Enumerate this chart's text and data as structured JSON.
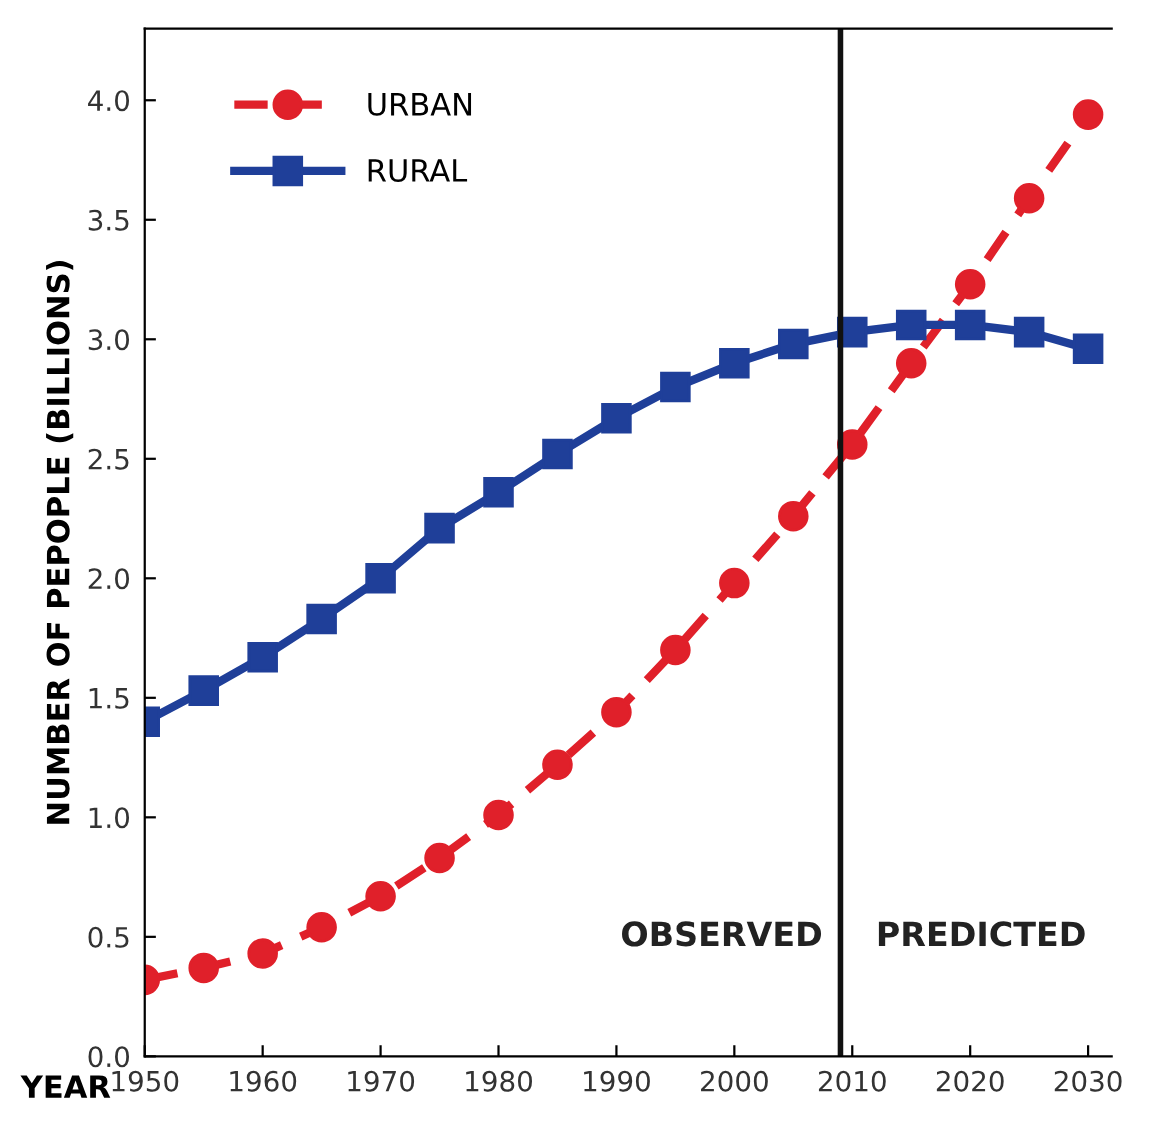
{
  "chart_data": {
    "type": "line",
    "ylabel": "NUMBER OF PEPOPLE (BILLIONS)",
    "xlabel": "YEAR",
    "x": [
      1950,
      1955,
      1960,
      1965,
      1970,
      1975,
      1980,
      1985,
      1990,
      1995,
      2000,
      2005,
      2010,
      2015,
      2020,
      2025,
      2030
    ],
    "series": [
      {
        "name": "URBAN",
        "color": "#e0202a",
        "marker": "circle",
        "line_style": "dashed",
        "values": [
          0.32,
          0.37,
          0.43,
          0.54,
          0.67,
          0.83,
          1.01,
          1.22,
          1.44,
          1.7,
          1.98,
          2.26,
          2.56,
          2.9,
          3.23,
          3.59,
          3.94
        ]
      },
      {
        "name": "RURAL",
        "color": "#1f3f99",
        "marker": "square",
        "line_style": "solid",
        "values": [
          1.4,
          1.53,
          1.67,
          1.83,
          2.0,
          2.21,
          2.36,
          2.52,
          2.67,
          2.8,
          2.9,
          2.98,
          3.03,
          3.06,
          3.06,
          3.03,
          2.96
        ]
      }
    ],
    "xlim": [
      1950,
      2032
    ],
    "ylim": [
      0,
      4.3
    ],
    "xticks": [
      1950,
      1960,
      1970,
      1980,
      1990,
      2000,
      2010,
      2020,
      2030
    ],
    "yticks": [
      {
        "value": 0,
        "label": "0.0"
      },
      0.5,
      {
        "value": 1,
        "label": "1.0"
      },
      1.5,
      {
        "value": 2,
        "label": "2.0"
      },
      2.5,
      {
        "value": 3,
        "label": "3.0"
      },
      3.5,
      {
        "value": 4,
        "label": "4.0"
      }
    ],
    "ref_lines": [
      {
        "axis": "x",
        "value": 2009,
        "color": "#111111"
      }
    ],
    "annotations": [
      "OBSERVED",
      "PREDICTED"
    ],
    "legend": "top left",
    "grid": false
  }
}
